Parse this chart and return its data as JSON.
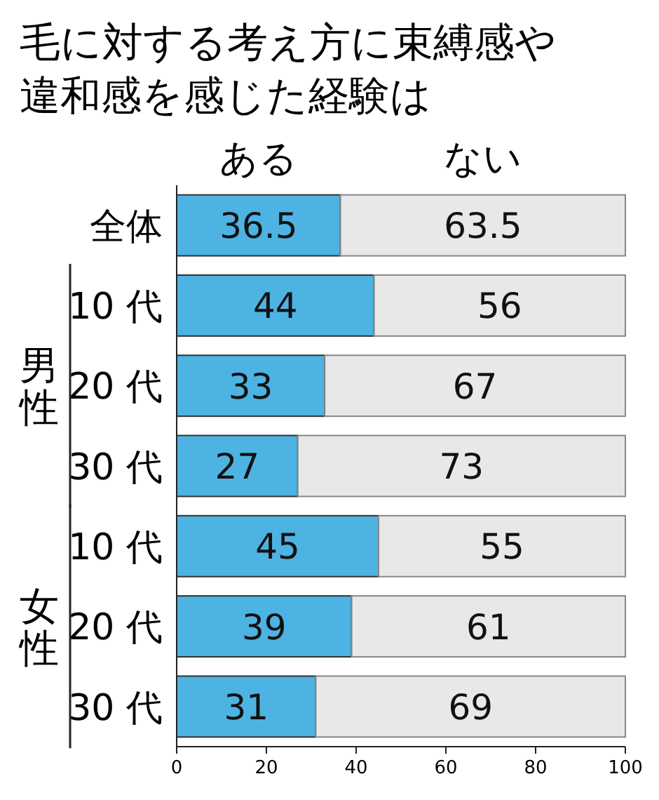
{
  "chart_data": {
    "type": "bar",
    "orientation": "horizontal",
    "stacked": true,
    "title": "毛に対する考え方に束縛感や違和感を感じた経験は",
    "categories": [
      "全体",
      "10 代",
      "20 代",
      "30 代",
      "10 代",
      "20 代",
      "30 代"
    ],
    "series": [
      {
        "name": "ある",
        "color": "#4db3e2",
        "values": [
          36.5,
          44,
          33,
          27,
          45,
          39,
          31
        ]
      },
      {
        "name": "ない",
        "color": "#e8e8e8",
        "values": [
          63.5,
          56,
          67,
          73,
          55,
          61,
          69
        ]
      }
    ],
    "xlim": [
      0,
      100
    ],
    "xticks": [
      0,
      20,
      40,
      60,
      80,
      100
    ],
    "data_labels": true,
    "legend": "top",
    "annotations": [
      "男性",
      "女性"
    ]
  }
}
